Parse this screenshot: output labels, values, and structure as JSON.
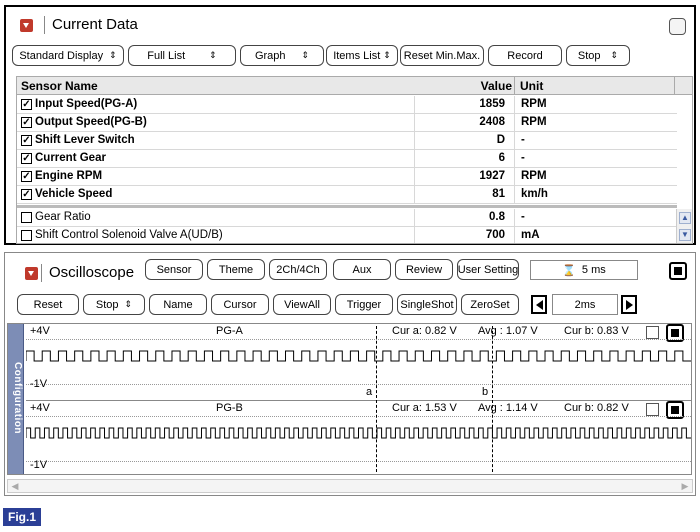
{
  "current_data": {
    "title": "Current Data",
    "toolbar": {
      "standard_display": "Standard Display",
      "full_list": "Full List",
      "graph": "Graph",
      "items_list": "Items List",
      "reset_minmax": "Reset Min.Max.",
      "record": "Record",
      "stop": "Stop"
    },
    "columns": {
      "name": "Sensor Name",
      "value": "Value",
      "unit": "Unit"
    },
    "rows": [
      {
        "name": "Input Speed(PG-A)",
        "value": "1859",
        "unit": "RPM",
        "checked": true
      },
      {
        "name": "Output Speed(PG-B)",
        "value": "2408",
        "unit": "RPM",
        "checked": true
      },
      {
        "name": "Shift Lever Switch",
        "value": "D",
        "unit": "-",
        "checked": true
      },
      {
        "name": "Current Gear",
        "value": "6",
        "unit": "-",
        "checked": true
      },
      {
        "name": "Engine RPM",
        "value": "1927",
        "unit": "RPM",
        "checked": true
      },
      {
        "name": "Vehicle Speed",
        "value": "81",
        "unit": "km/h",
        "checked": true
      },
      {
        "name": "Gear Ratio",
        "value": "0.8",
        "unit": "-",
        "checked": false
      },
      {
        "name": "Shift Control Solenoid Valve A(UD/B)",
        "value": "700",
        "unit": "mA",
        "checked": false
      }
    ]
  },
  "oscilloscope": {
    "title": "Oscilloscope",
    "top_buttons": {
      "sensor": "Sensor",
      "theme": "Theme",
      "two_ch": "2Ch/4Ch",
      "aux": "Aux",
      "review": "Review",
      "user_setting": "User Setting"
    },
    "time_per_div": "5 ms",
    "second_buttons": {
      "reset": "Reset",
      "stop": "Stop",
      "name": "Name",
      "cursor": "Cursor",
      "view_all": "ViewAll",
      "trigger": "Trigger",
      "single_shot": "SingleShot",
      "zero_set": "ZeroSet"
    },
    "step_value": "2ms",
    "configuration_tab": "Configuration",
    "channels": [
      {
        "top_voltage": "+4V",
        "bottom_voltage": "-1V",
        "name": "PG-A",
        "cur_a": "Cur a: 0.82 V",
        "avg": "Avg : 1.07 V",
        "cur_b": "Cur b: 0.83 V",
        "cursor_a_marker": "a",
        "cursor_b_marker": "b",
        "pulse_count": 41
      },
      {
        "top_voltage": "+4V",
        "bottom_voltage": "-1V",
        "name": "PG-B",
        "cur_a": "Cur a: 1.53 V",
        "avg": "Avg : 1.14 V",
        "cur_b": "Cur b: 0.82 V",
        "pulse_count": 72
      }
    ]
  },
  "figure_label": "Fig.1",
  "colors": {
    "accent_red": "#c0392b",
    "config_tab": "#7d8db6",
    "fig_label_bg": "#2b3f96"
  }
}
